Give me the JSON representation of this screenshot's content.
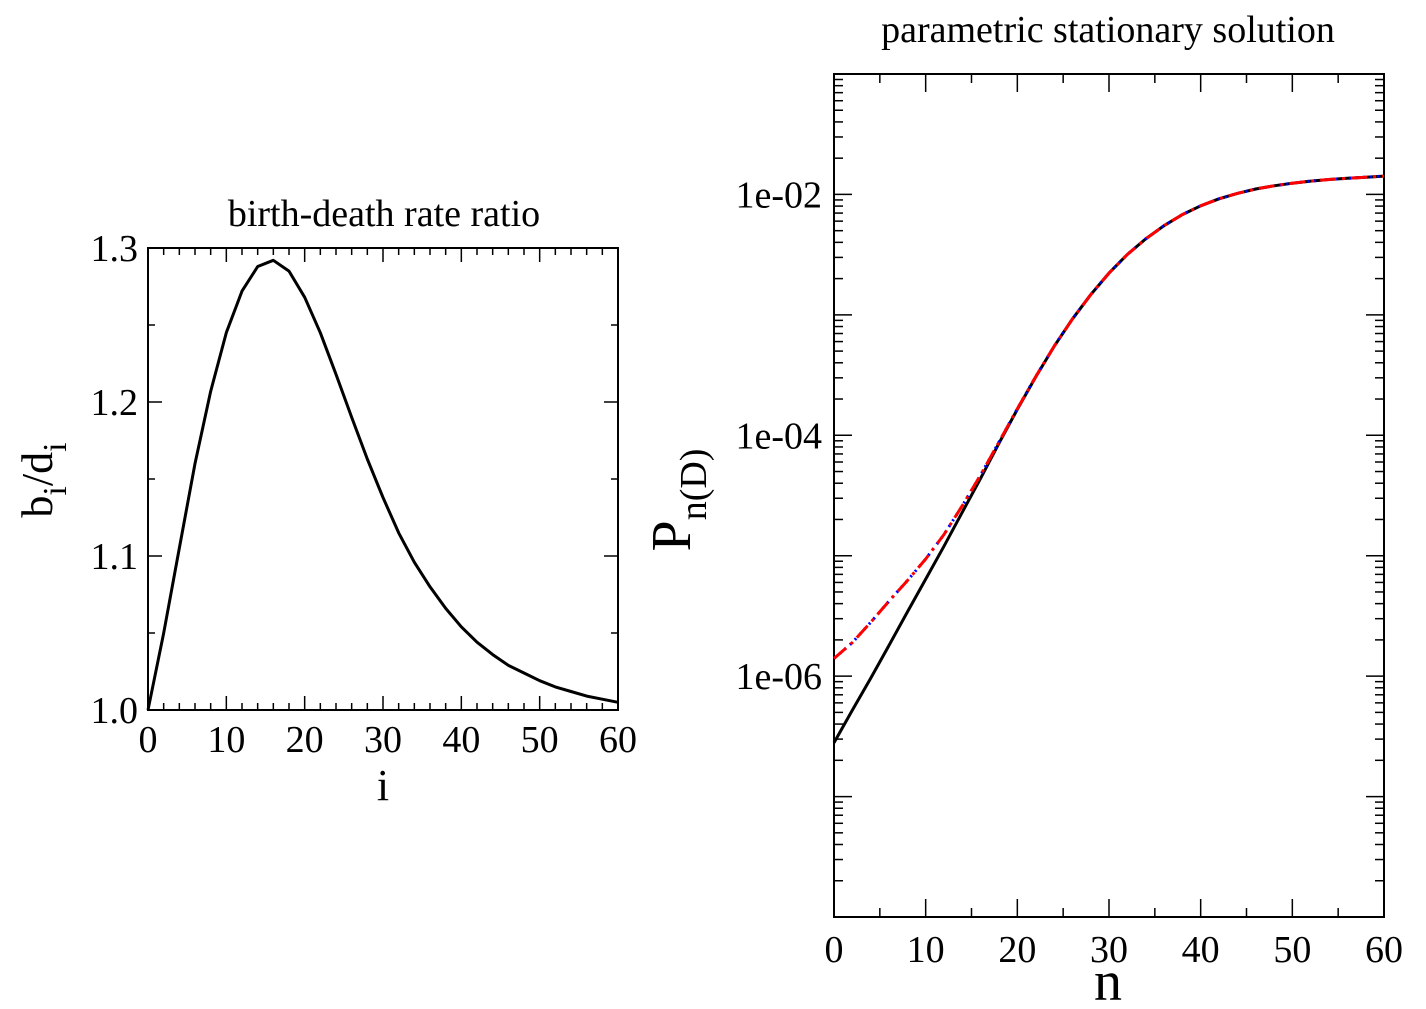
{
  "chart_data": [
    {
      "type": "line",
      "title": "birth-death rate ratio",
      "xlabel": "i",
      "ylabel_main": "b",
      "ylabel_sub1": "i",
      "ylabel_mid": "/d",
      "ylabel_sub2": "i",
      "xlim": [
        0,
        60
      ],
      "ylim": [
        1.0,
        1.3
      ],
      "xticks": [
        "0",
        "10",
        "20",
        "30",
        "40",
        "50",
        "60"
      ],
      "yticks": [
        "1.0",
        "1.1",
        "1.2",
        "1.3"
      ],
      "grid": false,
      "series": [
        {
          "color": "#000000",
          "style": "solid",
          "x": [
            0,
            2,
            4,
            6,
            8,
            10,
            12,
            14,
            16,
            18,
            20,
            22,
            24,
            26,
            28,
            30,
            32,
            34,
            36,
            38,
            40,
            42,
            44,
            46,
            48,
            50,
            52,
            54,
            56,
            58,
            60
          ],
          "y": [
            1.0,
            1.05,
            1.105,
            1.16,
            1.207,
            1.245,
            1.272,
            1.288,
            1.292,
            1.285,
            1.268,
            1.245,
            1.218,
            1.19,
            1.163,
            1.138,
            1.115,
            1.096,
            1.08,
            1.066,
            1.054,
            1.044,
            1.036,
            1.029,
            1.024,
            1.019,
            1.015,
            1.012,
            1.009,
            1.007,
            1.005
          ]
        }
      ]
    },
    {
      "type": "line",
      "title": "parametric stationary solution",
      "xlabel": "n",
      "ylabel_main": "P",
      "ylabel_sub": "n(D)",
      "xlim": [
        0,
        60
      ],
      "ylim": [
        1e-08,
        0.1
      ],
      "yscale": "log",
      "xticks": [
        "0",
        "10",
        "20",
        "30",
        "40",
        "50",
        "60"
      ],
      "yticks": [
        {
          "value": 1e-06,
          "label": "1e-06"
        },
        {
          "value": 0.0001,
          "label": "1e-04"
        },
        {
          "value": 0.01,
          "label": "1e-02"
        }
      ],
      "grid": false,
      "series": [
        {
          "color": "#000000",
          "style": "solid",
          "x": [
            0,
            2,
            4,
            6,
            8,
            10,
            12,
            14,
            16,
            18,
            20,
            22,
            24,
            26,
            28,
            30,
            32,
            34,
            36,
            38,
            40,
            42,
            44,
            46,
            48,
            50,
            52,
            54,
            56,
            58,
            60
          ],
          "y": [
            2.8e-07,
            5.2e-07,
            9.6e-07,
            1.8e-06,
            3.4e-06,
            6.4e-06,
            1.2e-05,
            2.3e-05,
            4.4e-05,
            8.6e-05,
            0.000164,
            0.000305,
            0.000545,
            0.00092,
            0.00147,
            0.00222,
            0.00317,
            0.00427,
            0.0055,
            0.0068,
            0.00805,
            0.0092,
            0.0102,
            0.0111,
            0.0118,
            0.0124,
            0.0129,
            0.0133,
            0.0136,
            0.0139,
            0.0142
          ]
        },
        {
          "color": "#0000ff",
          "style": "dotted",
          "x": [
            0,
            2,
            4,
            6,
            8,
            10,
            12,
            14,
            16,
            18,
            20,
            22,
            24,
            26,
            28,
            30,
            32,
            34,
            36,
            38,
            40,
            42,
            44,
            46,
            48,
            50,
            52,
            54,
            56,
            58,
            60
          ],
          "y": [
            1.4e-06,
            1.9e-06,
            2.8e-06,
            4.2e-06,
            6.2e-06,
            9.4e-06,
            1.5e-05,
            2.6e-05,
            4.7e-05,
            8.8e-05,
            0.000166,
            0.000307,
            0.000546,
            0.00092,
            0.00147,
            0.00222,
            0.00317,
            0.00427,
            0.0055,
            0.0068,
            0.00805,
            0.0092,
            0.0102,
            0.0111,
            0.0118,
            0.0124,
            0.0129,
            0.0133,
            0.0136,
            0.0139,
            0.0142
          ]
        },
        {
          "color": "#ff0000",
          "style": "dash-dot",
          "x": [
            0,
            2,
            4,
            6,
            8,
            10,
            12,
            14,
            16,
            18,
            20,
            22,
            24,
            26,
            28,
            30,
            32,
            34,
            36,
            38,
            40,
            42,
            44,
            46,
            48,
            50,
            52,
            54,
            56,
            58,
            60
          ],
          "y": [
            1.4e-06,
            1.9e-06,
            2.8e-06,
            4.2e-06,
            6.2e-06,
            9.4e-06,
            1.5e-05,
            2.6e-05,
            4.7e-05,
            8.8e-05,
            0.000166,
            0.000307,
            0.000546,
            0.00092,
            0.00147,
            0.00222,
            0.00317,
            0.00427,
            0.0055,
            0.0068,
            0.00805,
            0.0092,
            0.0102,
            0.0111,
            0.0118,
            0.0124,
            0.0129,
            0.0133,
            0.0136,
            0.0139,
            0.0142
          ]
        }
      ]
    }
  ]
}
